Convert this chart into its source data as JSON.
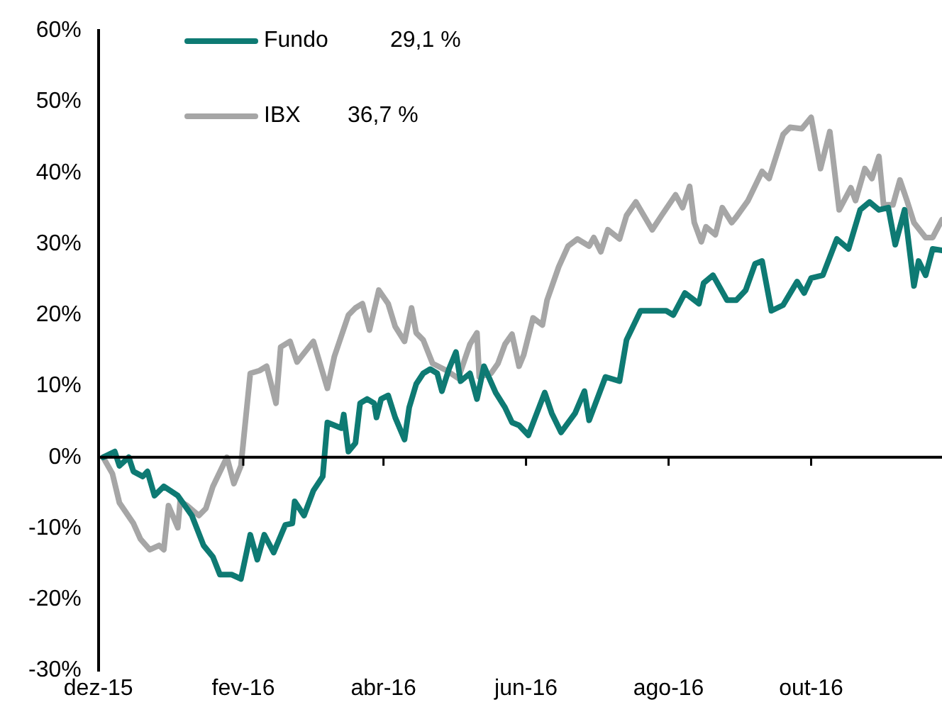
{
  "chart_data": {
    "type": "line",
    "xlim": [
      "2015-12-01",
      "2016-11-26"
    ],
    "xticks": [
      {
        "value": "2015-12-01",
        "label": "dez-15"
      },
      {
        "value": "2016-02-01",
        "label": "fev-16"
      },
      {
        "value": "2016-04-01",
        "label": "abr-16"
      },
      {
        "value": "2016-06-01",
        "label": "jun-16"
      },
      {
        "value": "2016-08-01",
        "label": "ago-16"
      },
      {
        "value": "2016-10-01",
        "label": "out-16"
      }
    ],
    "ylim": [
      -30,
      60
    ],
    "yticks": [
      {
        "value": -30,
        "label": "-30%"
      },
      {
        "value": -20,
        "label": "-20%"
      },
      {
        "value": -10,
        "label": "-10%"
      },
      {
        "value": 0,
        "label": "0%"
      },
      {
        "value": 10,
        "label": "10%"
      },
      {
        "value": 20,
        "label": "20%"
      },
      {
        "value": 30,
        "label": "30%"
      },
      {
        "value": 40,
        "label": "40%"
      },
      {
        "value": 50,
        "label": "50%"
      },
      {
        "value": 60,
        "label": "60%"
      }
    ],
    "grid": false,
    "legend": "top left",
    "marker": "none",
    "line_style": "solid",
    "ref_lines": [
      {
        "axis": "y",
        "value": 0,
        "color": "#000000"
      }
    ],
    "annotations": [
      "29,1 %",
      "36,7 %"
    ],
    "series": [
      {
        "name": "Fundo",
        "color": "#0e7a73",
        "x": [
          "2015-12-03",
          "2015-12-08",
          "2015-12-10",
          "2015-12-14",
          "2015-12-16",
          "2015-12-20",
          "2015-12-22",
          "2015-12-25",
          "2015-12-29",
          "2016-01-04",
          "2016-01-10",
          "2016-01-15",
          "2016-01-19",
          "2016-01-22",
          "2016-01-27",
          "2016-01-31",
          "2016-02-04",
          "2016-02-07",
          "2016-02-10",
          "2016-02-14",
          "2016-02-19",
          "2016-02-22",
          "2016-02-23",
          "2016-02-27",
          "2016-03-02",
          "2016-03-06",
          "2016-03-08",
          "2016-03-14",
          "2016-03-15",
          "2016-03-17",
          "2016-03-20",
          "2016-03-22",
          "2016-03-25",
          "2016-03-28",
          "2016-03-29",
          "2016-03-31",
          "2016-04-03",
          "2016-04-06",
          "2016-04-10",
          "2016-04-12",
          "2016-04-15",
          "2016-04-18",
          "2016-04-21",
          "2016-04-24",
          "2016-04-26",
          "2016-04-29",
          "2016-05-02",
          "2016-05-04",
          "2016-05-08",
          "2016-05-11",
          "2016-05-14",
          "2016-05-19",
          "2016-05-23",
          "2016-05-26",
          "2016-05-29",
          "2016-06-02",
          "2016-06-09",
          "2016-06-12",
          "2016-06-16",
          "2016-06-22",
          "2016-06-26",
          "2016-06-28",
          "2016-07-05",
          "2016-07-11",
          "2016-07-14",
          "2016-07-20",
          "2016-07-31",
          "2016-08-03",
          "2016-08-08",
          "2016-08-14",
          "2016-08-16",
          "2016-08-20",
          "2016-08-26",
          "2016-08-30",
          "2016-09-03",
          "2016-09-07",
          "2016-09-10",
          "2016-09-14",
          "2016-09-19",
          "2016-09-25",
          "2016-09-28",
          "2016-10-01",
          "2016-10-06",
          "2016-10-12",
          "2016-10-17",
          "2016-10-22",
          "2016-10-26",
          "2016-10-30",
          "2016-11-03",
          "2016-11-06",
          "2016-11-10",
          "2016-11-14",
          "2016-11-16",
          "2016-11-19",
          "2016-11-22",
          "2016-11-26"
        ],
        "values": [
          0,
          0.8,
          -1.2,
          0,
          -2,
          -2.7,
          -2,
          -5.4,
          -4.1,
          -5.4,
          -8.2,
          -12.4,
          -14,
          -16.5,
          -16.5,
          -17.1,
          -10.9,
          -14.4,
          -10.9,
          -13.4,
          -9.5,
          -9.3,
          -6.2,
          -8.2,
          -4.7,
          -2.7,
          4.9,
          4.1,
          6,
          0.8,
          2,
          7.6,
          8.2,
          7.6,
          5.6,
          8.2,
          8.7,
          5.6,
          2.5,
          7,
          10.3,
          11.8,
          12.4,
          11.8,
          9.3,
          12.4,
          14.8,
          10.7,
          11.8,
          8.2,
          12.8,
          9.1,
          7,
          4.9,
          4.5,
          3.1,
          9.1,
          6.2,
          3.5,
          6.2,
          9.3,
          5.2,
          11.3,
          10.7,
          16.5,
          20.6,
          20.6,
          20,
          23.1,
          21.6,
          24.5,
          25.6,
          22.1,
          22.1,
          23.5,
          27.2,
          27.6,
          20.6,
          21.4,
          24.7,
          23.1,
          25.2,
          25.6,
          30.7,
          29.3,
          34.8,
          35.9,
          34.8,
          35.1,
          29.9,
          34.8,
          24.1,
          27.6,
          25.6,
          29.3,
          29.1
        ]
      },
      {
        "name": "IBX",
        "color": "#a6a6a6",
        "x": [
          "2015-12-03",
          "2015-12-07",
          "2015-12-10",
          "2015-12-16",
          "2015-12-19",
          "2015-12-23",
          "2015-12-27",
          "2015-12-29",
          "2015-12-31",
          "2016-01-04",
          "2016-01-05",
          "2016-01-08",
          "2016-01-13",
          "2016-01-16",
          "2016-01-19",
          "2016-01-25",
          "2016-01-28",
          "2016-01-31",
          "2016-02-04",
          "2016-02-08",
          "2016-02-11",
          "2016-02-15",
          "2016-02-17",
          "2016-02-21",
          "2016-02-24",
          "2016-03-02",
          "2016-03-08",
          "2016-03-11",
          "2016-03-17",
          "2016-03-20",
          "2016-03-23",
          "2016-03-26",
          "2016-03-30",
          "2016-04-03",
          "2016-04-06",
          "2016-04-10",
          "2016-04-13",
          "2016-04-15",
          "2016-04-18",
          "2016-04-22",
          "2016-04-28",
          "2016-05-03",
          "2016-05-08",
          "2016-05-11",
          "2016-05-12",
          "2016-05-17",
          "2016-05-20",
          "2016-05-23",
          "2016-05-26",
          "2016-05-29",
          "2016-05-31",
          "2016-06-04",
          "2016-06-08",
          "2016-06-10",
          "2016-06-15",
          "2016-06-19",
          "2016-06-23",
          "2016-06-28",
          "2016-06-30",
          "2016-07-03",
          "2016-07-06",
          "2016-07-11",
          "2016-07-14",
          "2016-07-18",
          "2016-07-25",
          "2016-07-29",
          "2016-08-04",
          "2016-08-07",
          "2016-08-10",
          "2016-08-12",
          "2016-08-15",
          "2016-08-17",
          "2016-08-21",
          "2016-08-24",
          "2016-08-28",
          "2016-08-30",
          "2016-09-04",
          "2016-09-10",
          "2016-09-13",
          "2016-09-16",
          "2016-09-19",
          "2016-09-22",
          "2016-09-27",
          "2016-10-01",
          "2016-10-05",
          "2016-10-09",
          "2016-10-13",
          "2016-10-18",
          "2016-10-20",
          "2016-10-24",
          "2016-10-27",
          "2016-10-30",
          "2016-11-01",
          "2016-11-05",
          "2016-11-08",
          "2016-11-11",
          "2016-11-14",
          "2016-11-19",
          "2016-11-22",
          "2016-11-26"
        ],
        "values": [
          0,
          -2.3,
          -6.4,
          -9.3,
          -11.5,
          -13,
          -12.4,
          -13,
          -6.8,
          -9.9,
          -6.2,
          -6.8,
          -8.2,
          -7.2,
          -4.1,
          0,
          -3.7,
          -1.2,
          11.8,
          12.2,
          12.8,
          7.6,
          15.5,
          16.3,
          13.4,
          16.3,
          9.7,
          14.2,
          20,
          21,
          21.6,
          17.9,
          23.5,
          21.6,
          18.4,
          16.3,
          21,
          17.5,
          16.5,
          13.2,
          12.2,
          11.1,
          15.9,
          17.5,
          11.3,
          11.8,
          13.2,
          15.9,
          17.3,
          12.8,
          14.4,
          19.6,
          18.6,
          22.1,
          26.8,
          29.7,
          30.7,
          29.7,
          30.9,
          28.9,
          32,
          30.7,
          34,
          35.9,
          32,
          34,
          36.9,
          35.1,
          38.1,
          33,
          30.3,
          32.4,
          31.3,
          35.1,
          33,
          33.8,
          36.1,
          40.2,
          39.2,
          42.3,
          45.4,
          46.4,
          46.2,
          47.8,
          40.6,
          45.8,
          34.8,
          37.9,
          36.1,
          40.6,
          39.2,
          42.3,
          35.5,
          35.5,
          39,
          36.1,
          33,
          30.9,
          30.9,
          33.4
        ]
      }
    ]
  }
}
